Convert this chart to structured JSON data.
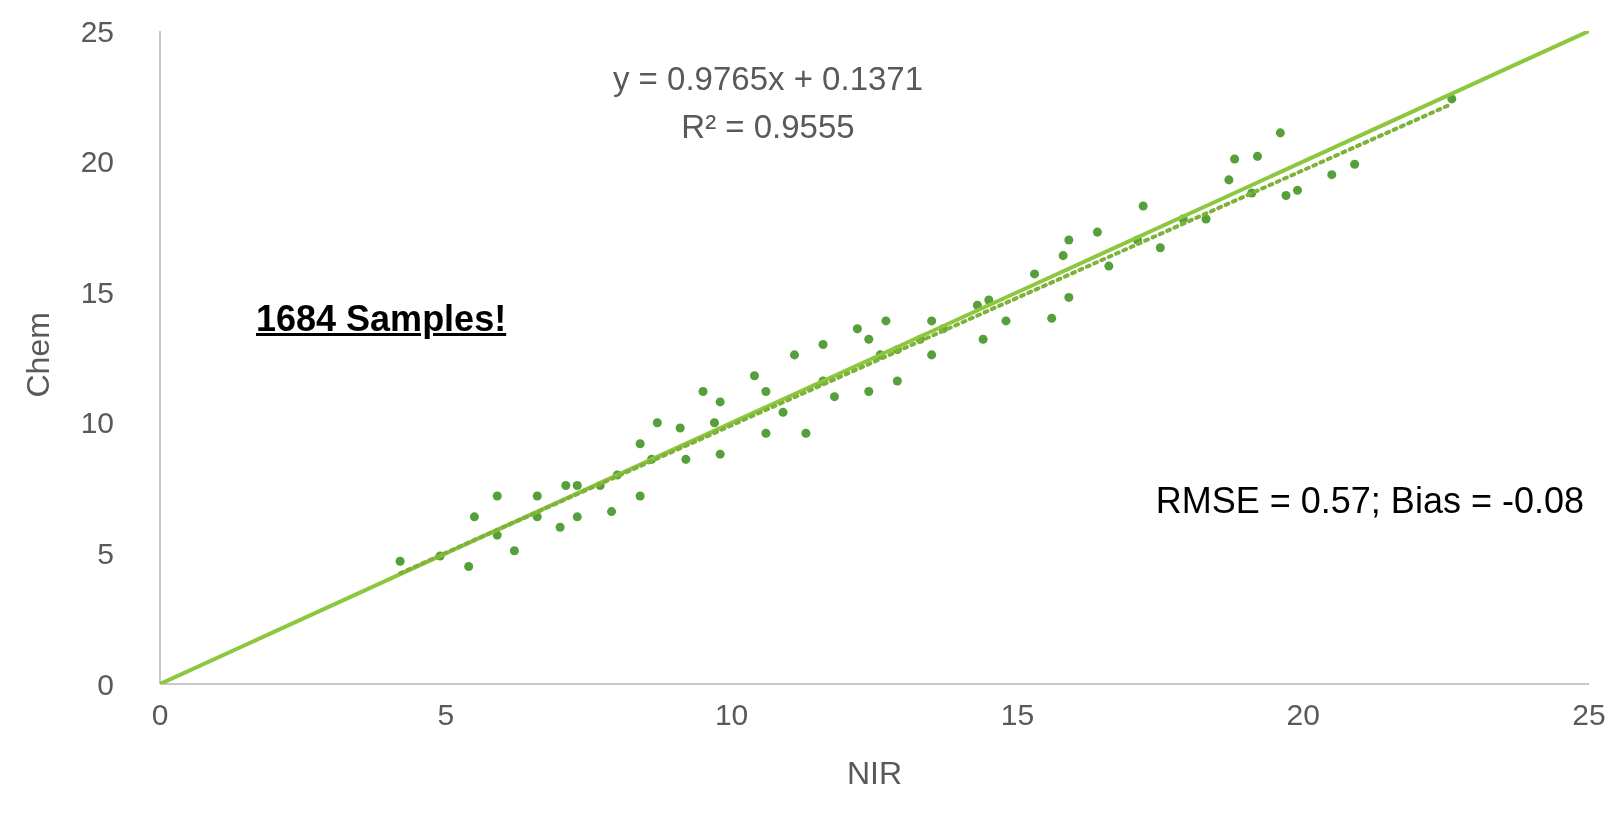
{
  "chart_data": {
    "type": "scatter",
    "xlabel": "NIR",
    "ylabel": "Chem",
    "xlim": [
      0,
      25
    ],
    "ylim": [
      0,
      25
    ],
    "xticks": [
      0,
      5,
      10,
      15,
      20,
      25
    ],
    "yticks": [
      0,
      5,
      10,
      15,
      20,
      25
    ],
    "grid": false,
    "annotations": [
      "y = 0.9765x + 0.1371",
      "R² = 0.9555",
      "1684 Samples!",
      "RMSE = 0.57; Bias = -0.08"
    ],
    "series": [
      {
        "marker": "circle",
        "color": "#55a03a",
        "x": [
          4.2,
          4.9,
          5.4,
          5.5,
          5.9,
          6.2,
          5.9,
          6.6,
          6.6,
          7.0,
          7.1,
          7.3,
          7.3,
          7.7,
          7.9,
          8.0,
          8.4,
          8.4,
          8.6,
          8.7,
          9.1,
          9.2,
          9.5,
          9.7,
          9.8,
          9.8,
          10.4,
          10.6,
          10.6,
          10.9,
          11.1,
          11.3,
          11.6,
          11.6,
          11.8,
          12.2,
          12.4,
          12.4,
          12.6,
          12.7,
          12.9,
          12.9,
          13.3,
          13.5,
          13.5,
          13.7,
          14.3,
          14.4,
          14.5,
          14.8,
          15.3,
          15.6,
          15.8,
          15.9,
          15.9,
          16.4,
          16.6,
          17.1,
          17.2,
          17.5,
          17.9,
          18.3,
          18.7,
          18.8,
          19.1,
          19.2,
          19.6,
          19.7,
          19.9,
          20.5,
          20.9,
          22.6
        ],
        "values": [
          4.7,
          4.9,
          4.5,
          6.4,
          5.7,
          5.1,
          7.2,
          7.2,
          6.4,
          6.0,
          7.6,
          7.6,
          6.4,
          7.6,
          6.6,
          8.0,
          9.2,
          7.2,
          8.6,
          10.0,
          9.8,
          8.6,
          11.2,
          10.0,
          8.8,
          10.8,
          11.8,
          9.6,
          11.2,
          10.4,
          12.6,
          9.6,
          13.0,
          11.6,
          11.0,
          13.6,
          11.2,
          13.2,
          12.6,
          13.9,
          11.6,
          12.8,
          13.2,
          13.9,
          12.6,
          13.6,
          14.5,
          13.2,
          14.7,
          13.9,
          15.7,
          14.0,
          16.4,
          14.8,
          17.0,
          17.3,
          16.0,
          17.0,
          18.3,
          16.7,
          17.8,
          17.8,
          19.3,
          20.1,
          18.8,
          20.2,
          21.1,
          18.7,
          18.9,
          19.5,
          19.9,
          22.4
        ]
      },
      {
        "type": "line",
        "line_style": "solid",
        "color": "#8dc63f",
        "x": [
          0,
          25
        ],
        "values": [
          0,
          25
        ]
      },
      {
        "type": "line",
        "line_style": "dotted",
        "color": "#7fb23a",
        "x": [
          4.2,
          22.6
        ],
        "values": [
          4.24,
          22.21
        ]
      }
    ]
  }
}
